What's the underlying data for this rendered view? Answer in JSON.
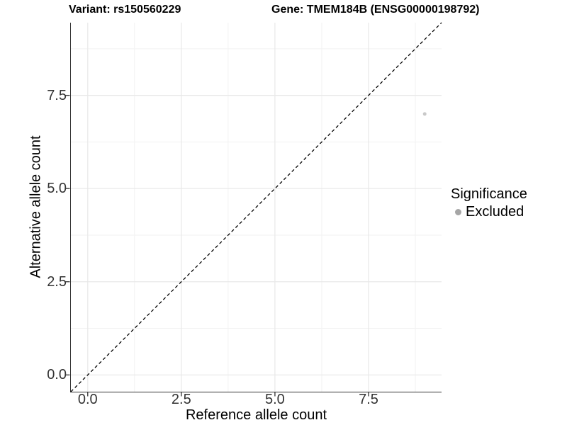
{
  "titles": {
    "variant": "Variant: rs150560229",
    "gene": "Gene: TMEM184B (ENSG00000198792)"
  },
  "chart_data": {
    "type": "scatter",
    "title_left": "Variant: rs150560229",
    "title_right": "Gene: TMEM184B (ENSG00000198792)",
    "xlabel": "Reference allele count",
    "ylabel": "Alternative allele count",
    "xlim": [
      -0.45,
      9.45
    ],
    "ylim": [
      -0.45,
      9.45
    ],
    "x_ticks": {
      "values": [
        0,
        2.5,
        5,
        7.5
      ],
      "labels": [
        "0.0",
        "2.5",
        "5.0",
        "7.5"
      ]
    },
    "y_ticks": {
      "values": [
        0,
        2.5,
        5,
        7.5
      ],
      "labels": [
        "0.0",
        "2.5",
        "5.0",
        "7.5"
      ]
    },
    "x_minor_breaks": [
      1.25,
      3.75,
      6.25,
      8.75
    ],
    "y_minor_breaks": [
      1.25,
      3.75,
      6.25,
      8.75
    ],
    "grid": true,
    "reference_line": {
      "type": "identity",
      "equation": "y = x",
      "style": "dashed",
      "color": "#000000"
    },
    "points": [
      {
        "x": 9,
        "y": 7,
        "significance": "Excluded"
      }
    ],
    "point_style": {
      "radius": 2.5,
      "color": "#c9c9c9"
    },
    "legend": {
      "position": "right",
      "title": "Significance",
      "entries": [
        {
          "label": "Excluded",
          "color": "#a6a6a6"
        }
      ]
    }
  },
  "colors": {
    "background": "#ffffff",
    "axis_line": "#333333",
    "tick_mark": "#333333",
    "tick_label": "#333333",
    "grid_major": "#e8e8e8",
    "grid_minor": "#f2f2f2",
    "title_text": "#000000"
  }
}
